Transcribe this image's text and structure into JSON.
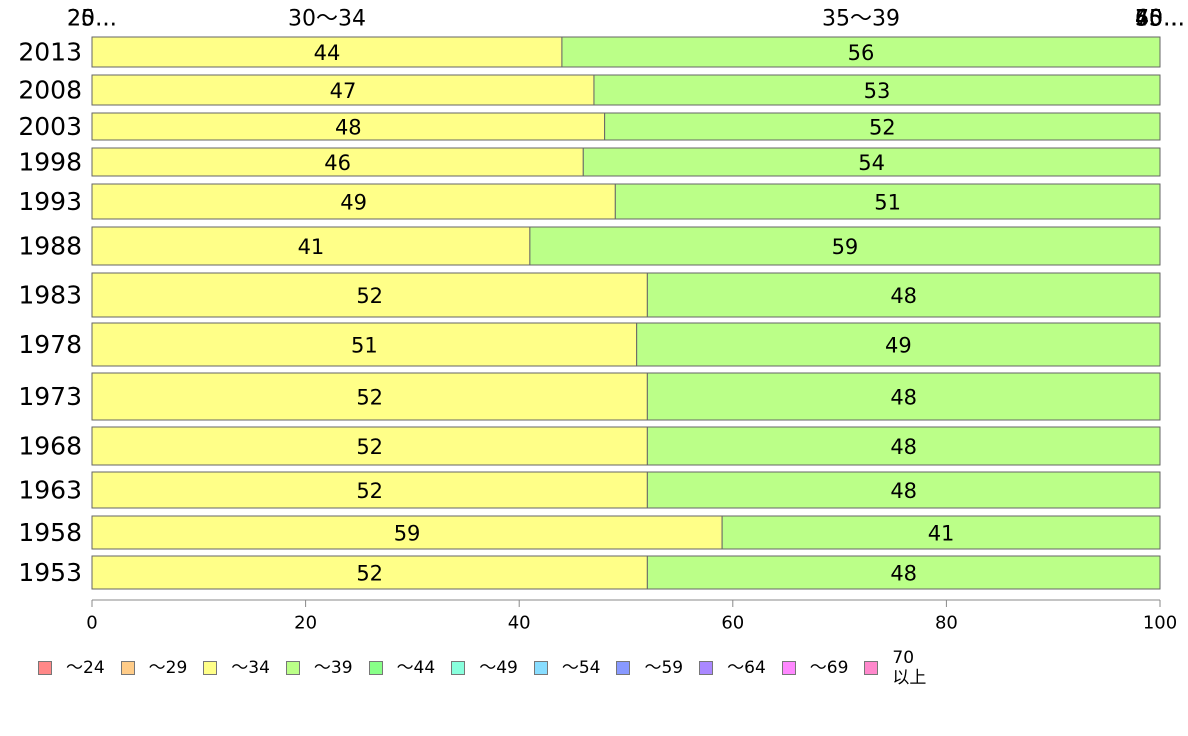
{
  "chart_data": {
    "type": "bar",
    "orientation": "horizontal",
    "stacked": true,
    "categories": [
      "2013",
      "2008",
      "2003",
      "1998",
      "1993",
      "1988",
      "1983",
      "1978",
      "1973",
      "1968",
      "1963",
      "1958",
      "1953"
    ],
    "series": [
      {
        "name": "〜34",
        "color": "#ffff88",
        "values": [
          44,
          47,
          48,
          46,
          49,
          41,
          52,
          51,
          52,
          52,
          52,
          59,
          52
        ]
      },
      {
        "name": "〜39",
        "color": "#bbff88",
        "values": [
          56,
          53,
          52,
          54,
          51,
          59,
          48,
          49,
          48,
          48,
          48,
          41,
          48
        ]
      }
    ],
    "xlim": [
      0,
      100
    ],
    "x_ticks": [
      0,
      20,
      40,
      60,
      80,
      100
    ],
    "top_labels": [
      "20…",
      "25…",
      "30〜34",
      "35〜39",
      "40…",
      "45…",
      "50…",
      "55…",
      "60…",
      "65…",
      "70…"
    ],
    "legend_position": "bottom",
    "legend": [
      {
        "label": "〜24",
        "color": "#ff8888"
      },
      {
        "label": "〜29",
        "color": "#ffcc88"
      },
      {
        "label": "〜34",
        "color": "#ffff88"
      },
      {
        "label": "〜39",
        "color": "#bbff88"
      },
      {
        "label": "〜44",
        "color": "#88ff88"
      },
      {
        "label": "〜49",
        "color": "#88ffdd"
      },
      {
        "label": "〜54",
        "color": "#88ddff"
      },
      {
        "label": "〜59",
        "color": "#8899ff"
      },
      {
        "label": "〜64",
        "color": "#aa88ff"
      },
      {
        "label": "〜69",
        "color": "#ff88ff"
      },
      {
        "label": "70\n以上",
        "color": "#ff88cc"
      }
    ]
  }
}
